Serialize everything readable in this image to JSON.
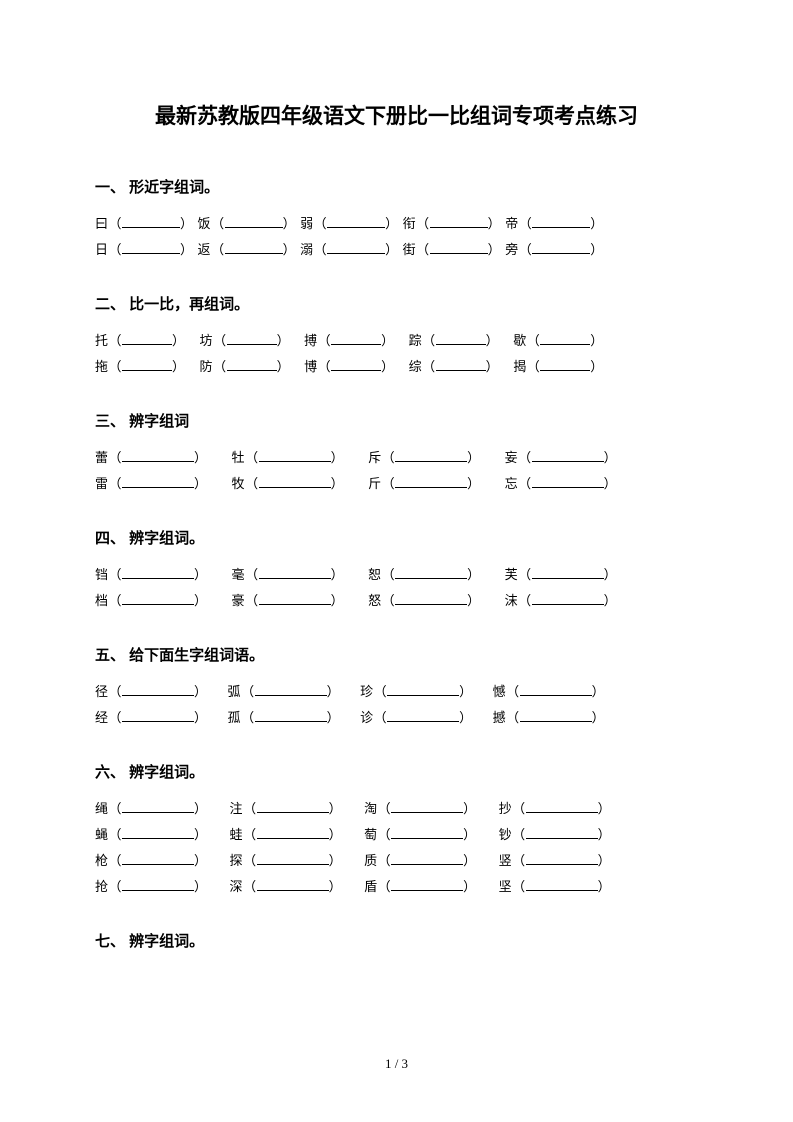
{
  "title": "最新苏教版四年级语文下册比一比组词专项考点练习",
  "footer": "1 / 3",
  "sections": [
    {
      "heading": "一、 形近字组词。",
      "blank_width": 58,
      "gap": 4,
      "rows": [
        [
          "曰",
          "饭",
          "弱",
          "衔",
          "帝"
        ],
        [
          "日",
          "返",
          "溺",
          "街",
          "旁"
        ]
      ]
    },
    {
      "heading": "二、 比一比，再组词。",
      "blank_width": 50,
      "gap": 14,
      "rows": [
        [
          "托",
          "坊",
          "搏",
          "踪",
          "歇"
        ],
        [
          "拖",
          "防",
          "博",
          "综",
          "揭"
        ]
      ]
    },
    {
      "heading": "三、 辨字组词",
      "blank_width": 72,
      "gap": 24,
      "rows": [
        [
          "蕾",
          "牡",
          "斥",
          "妄"
        ],
        [
          "雷",
          "牧",
          "斤",
          "忘"
        ]
      ]
    },
    {
      "heading": "四、 辨字组词。",
      "blank_width": 72,
      "gap": 24,
      "rows": [
        [
          "铛",
          "毫",
          "恕",
          "芙"
        ],
        [
          "档",
          "豪",
          "怒",
          "沫"
        ]
      ]
    },
    {
      "heading": "五、 给下面生字组词语。",
      "blank_width": 72,
      "gap": 20,
      "rows": [
        [
          "径",
          "弧",
          "珍",
          "憾"
        ],
        [
          "经",
          "孤",
          "诊",
          "撼"
        ]
      ]
    },
    {
      "heading": "六、 辨字组词。",
      "blank_width": 72,
      "gap": 22,
      "rows": [
        [
          "绳",
          "注",
          "淘",
          "抄"
        ],
        [
          "蝇",
          "蛙",
          "萄",
          "钞"
        ],
        [
          "枪",
          "探",
          "质",
          "竖"
        ],
        [
          "抢",
          "深",
          "盾",
          "坚"
        ]
      ]
    },
    {
      "heading": "七、 辨字组词。",
      "blank_width": 72,
      "gap": 22,
      "rows": []
    }
  ]
}
